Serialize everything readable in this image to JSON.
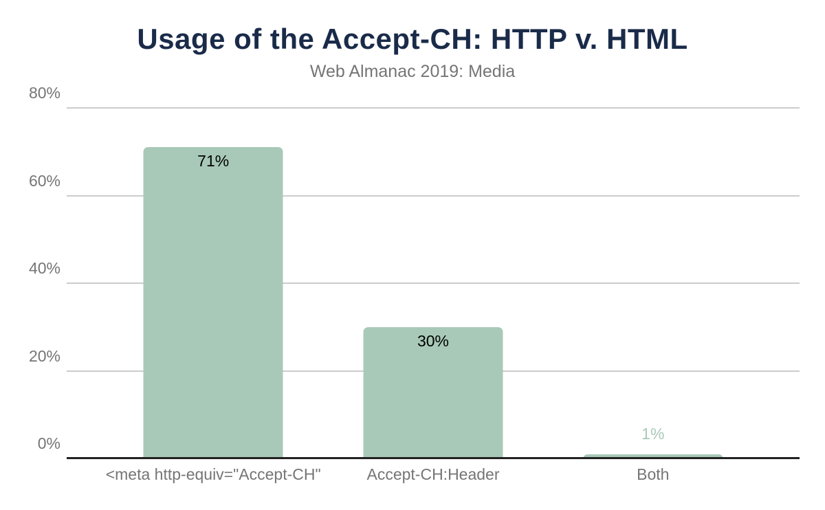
{
  "header": {
    "title": "Usage of the Accept-CH: HTTP v. HTML",
    "subtitle": "Web Almanac 2019: Media"
  },
  "chart_data": {
    "type": "bar",
    "title": "Usage of the Accept-CH: HTTP v. HTML",
    "subtitle": "Web Almanac 2019: Media",
    "categories": [
      "<meta http-equiv=\"Accept-CH\"",
      "Accept-CH:Header",
      "Both"
    ],
    "values": [
      71,
      30,
      1
    ],
    "value_labels": [
      "71%",
      "30%",
      "1%"
    ],
    "xlabel": "",
    "ylabel": "",
    "ylim": [
      0,
      80
    ],
    "y_tick_values": [
      0,
      20,
      40,
      60,
      80
    ],
    "y_tick_labels": [
      "0%",
      "20%",
      "40%",
      "60%",
      "80%"
    ],
    "grid": true,
    "legend": false,
    "bar_centers_pct": [
      20,
      50,
      80
    ],
    "colors": {
      "bar": "#a8c9b8",
      "title": "#1a2b49",
      "subtitle": "#757575",
      "tick_label": "#757575",
      "gridline": "#cccccc",
      "baseline": "#212121",
      "value_label_inside": "#000000",
      "value_label_outside": "#a8c9b8"
    }
  }
}
